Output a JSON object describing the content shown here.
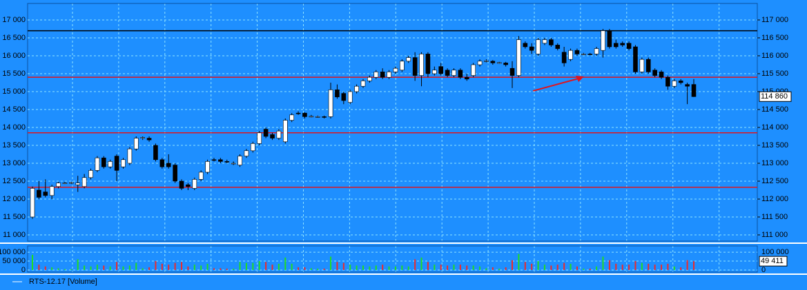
{
  "chart_data": [
    {
      "type": "candlestick",
      "ylim": [
        10827,
        17461
      ],
      "yticks": [
        {
          "value": 11000,
          "label": "11 000"
        },
        {
          "value": 11500,
          "label": "11 500"
        },
        {
          "value": 12000,
          "label": "12 000"
        },
        {
          "value": 12500,
          "label": "12 500"
        },
        {
          "value": 13000,
          "label": "13 000"
        },
        {
          "value": 13500,
          "label": "13 500"
        },
        {
          "value": 14000,
          "label": "14 000"
        },
        {
          "value": 14500,
          "label": "14 500"
        },
        {
          "value": 15000,
          "label": "15 000"
        },
        {
          "value": 15500,
          "label": "15 500"
        },
        {
          "value": 16000,
          "label": "16 000"
        },
        {
          "value": 16500,
          "label": "16 500"
        },
        {
          "value": 17000,
          "label": "17 000"
        }
      ],
      "y2lim": [
        110827,
        117461
      ],
      "y2ticks": [
        {
          "value": 111000,
          "label": "111 000"
        },
        {
          "value": 111500,
          "label": "111 500"
        },
        {
          "value": 112000,
          "label": "112 000"
        },
        {
          "value": 112500,
          "label": "112 500"
        },
        {
          "value": 113000,
          "label": "113 000"
        },
        {
          "value": 113500,
          "label": "113 500"
        },
        {
          "value": 114000,
          "label": "114 000"
        },
        {
          "value": 114500,
          "label": "114 500"
        },
        {
          "value": 115000,
          "label": "115 000"
        },
        {
          "value": 115500,
          "label": "115 500"
        },
        {
          "value": 116000,
          "label": "116 000"
        },
        {
          "value": 116500,
          "label": "116 500"
        },
        {
          "value": 117000,
          "label": "117 000"
        }
      ],
      "grid": true,
      "up_color": "#ffffff",
      "down_color": "#000000",
      "last_price": {
        "value": 114860,
        "label": "114 860"
      },
      "levels": [
        {
          "value": 16700,
          "color": "#000000"
        },
        {
          "value": 15400,
          "color": "#e0141e"
        },
        {
          "value": 13850,
          "color": "#e0141e"
        },
        {
          "value": 12330,
          "color": "#e0141e"
        }
      ],
      "ohlc": [
        [
          11500,
          12350,
          11450,
          12300
        ],
        [
          12250,
          12500,
          12000,
          12050
        ],
        [
          12200,
          12550,
          12050,
          12100
        ],
        [
          12100,
          12400,
          12000,
          12350
        ],
        [
          12350,
          12480,
          12300,
          12450
        ],
        [
          12450,
          12480,
          12420,
          12450
        ],
        [
          12450,
          12480,
          12420,
          12460
        ],
        [
          12400,
          12650,
          12200,
          12450
        ],
        [
          12350,
          12700,
          12300,
          12600
        ],
        [
          12600,
          12850,
          12550,
          12800
        ],
        [
          12800,
          13200,
          12750,
          13150
        ],
        [
          13150,
          13200,
          12850,
          12900
        ],
        [
          12900,
          13100,
          12850,
          13050
        ],
        [
          13200,
          13250,
          12500,
          12800
        ],
        [
          12900,
          13150,
          12850,
          13100
        ],
        [
          13000,
          13450,
          12950,
          13400
        ],
        [
          13400,
          13750,
          13350,
          13700
        ],
        [
          13700,
          13750,
          13650,
          13720
        ],
        [
          13700,
          13750,
          13600,
          13650
        ],
        [
          13500,
          13550,
          13050,
          13100
        ],
        [
          13100,
          13150,
          12850,
          12900
        ],
        [
          13000,
          13250,
          12850,
          12900
        ],
        [
          12950,
          13000,
          12450,
          12500
        ],
        [
          12500,
          12550,
          12250,
          12300
        ],
        [
          12400,
          12450,
          12250,
          12350
        ],
        [
          12300,
          12600,
          12250,
          12550
        ],
        [
          12550,
          12800,
          12500,
          12750
        ],
        [
          12750,
          13100,
          12700,
          13050
        ],
        [
          13100,
          13150,
          13050,
          13080
        ],
        [
          13100,
          13150,
          13000,
          13050
        ],
        [
          13050,
          13100,
          13000,
          13040
        ],
        [
          13000,
          13050,
          12950,
          13000
        ],
        [
          12950,
          13250,
          12900,
          13200
        ],
        [
          13200,
          13400,
          13150,
          13350
        ],
        [
          13350,
          13600,
          13300,
          13550
        ],
        [
          13550,
          13900,
          13500,
          13850
        ],
        [
          13950,
          14000,
          13700,
          13750
        ],
        [
          13800,
          13850,
          13650,
          13700
        ],
        [
          13700,
          13950,
          13650,
          13900
        ],
        [
          13600,
          14250,
          13550,
          14200
        ],
        [
          14200,
          14400,
          14150,
          14350
        ],
        [
          14400,
          14450,
          14350,
          14380
        ],
        [
          14400,
          14420,
          14250,
          14300
        ],
        [
          14300,
          14350,
          14280,
          14310
        ],
        [
          14300,
          14330,
          14270,
          14300
        ],
        [
          14300,
          14330,
          14250,
          14290
        ],
        [
          14300,
          15250,
          14250,
          15050
        ],
        [
          15050,
          15200,
          14800,
          14850
        ],
        [
          14950,
          15000,
          14650,
          14750
        ],
        [
          14700,
          15050,
          14650,
          15000
        ],
        [
          15000,
          15200,
          14950,
          15150
        ],
        [
          15150,
          15350,
          15100,
          15300
        ],
        [
          15300,
          15450,
          15250,
          15400
        ],
        [
          15400,
          15600,
          15350,
          15550
        ],
        [
          15550,
          15650,
          15350,
          15400
        ],
        [
          15400,
          15600,
          15350,
          15550
        ],
        [
          15550,
          15700,
          15500,
          15650
        ],
        [
          15600,
          15900,
          15550,
          15850
        ],
        [
          15850,
          16000,
          15800,
          15950
        ],
        [
          15950,
          16100,
          15300,
          15450
        ],
        [
          15450,
          16100,
          15150,
          16050
        ],
        [
          16050,
          16100,
          15400,
          15500
        ],
        [
          15500,
          15700,
          15450,
          15600
        ],
        [
          15700,
          15800,
          15450,
          15500
        ],
        [
          15600,
          15650,
          15400,
          15450
        ],
        [
          15450,
          15650,
          15400,
          15600
        ],
        [
          15600,
          15650,
          15350,
          15400
        ],
        [
          15400,
          15500,
          15300,
          15350
        ],
        [
          15450,
          15800,
          15400,
          15750
        ],
        [
          15750,
          15900,
          15700,
          15850
        ],
        [
          15850,
          15900,
          15820,
          15860
        ],
        [
          15850,
          15880,
          15750,
          15800
        ],
        [
          15800,
          15830,
          15780,
          15810
        ],
        [
          15800,
          15830,
          15700,
          15750
        ],
        [
          15650,
          15850,
          15100,
          15450
        ],
        [
          15450,
          16550,
          15400,
          16450
        ],
        [
          16350,
          16400,
          16200,
          16250
        ],
        [
          16250,
          16350,
          16050,
          16150
        ],
        [
          16050,
          16500,
          16000,
          16450
        ],
        [
          16350,
          16500,
          16300,
          16450
        ],
        [
          16450,
          16500,
          16250,
          16300
        ],
        [
          16300,
          16350,
          16150,
          16200
        ],
        [
          16100,
          16250,
          15700,
          15800
        ],
        [
          15900,
          16200,
          15850,
          16150
        ],
        [
          16150,
          16200,
          16000,
          16050
        ],
        [
          16050,
          16080,
          16020,
          16050
        ],
        [
          16050,
          16080,
          16020,
          16040
        ],
        [
          16050,
          16250,
          16000,
          16200
        ],
        [
          16150,
          16750,
          15950,
          16700
        ],
        [
          16700,
          16750,
          16200,
          16250
        ],
        [
          16350,
          16450,
          16200,
          16250
        ],
        [
          16350,
          16400,
          16250,
          16300
        ],
        [
          16350,
          16400,
          16150,
          16200
        ],
        [
          16250,
          16300,
          15500,
          15550
        ],
        [
          15550,
          15950,
          15500,
          15900
        ],
        [
          15900,
          15950,
          15500,
          15550
        ],
        [
          15600,
          15650,
          15400,
          15450
        ],
        [
          15550,
          15600,
          15350,
          15400
        ],
        [
          15400,
          15450,
          15050,
          15150
        ],
        [
          15150,
          15350,
          15100,
          15300
        ],
        [
          15300,
          15350,
          15200,
          15250
        ],
        [
          15200,
          15250,
          14650,
          15150
        ],
        [
          15200,
          15350,
          14850,
          14860
        ]
      ]
    },
    {
      "type": "volume",
      "legend": "RTS-12.17 [Volume]",
      "ylim": [
        0,
        135000
      ],
      "yticks": [
        {
          "value": 0,
          "label": "0"
        },
        {
          "value": 50000,
          "label": "50 000"
        },
        {
          "value": 100000,
          "label": "100 000"
        }
      ],
      "y2ticks": [
        {
          "value": 0,
          "label": "0"
        },
        {
          "value": 100000,
          "label": "100 000"
        }
      ],
      "up_color": "#22dd22",
      "down_color": "#ee2a2a",
      "last_volume": {
        "value": 49411,
        "label": "49 411"
      },
      "values": [
        85000,
        30000,
        20000,
        15000,
        10000,
        5000,
        5000,
        60000,
        25000,
        20000,
        30000,
        25000,
        20000,
        45000,
        20000,
        25000,
        40000,
        10000,
        15000,
        50000,
        35000,
        30000,
        40000,
        45000,
        20000,
        30000,
        25000,
        35000,
        10000,
        10000,
        8000,
        8000,
        45000,
        40000,
        40000,
        50000,
        45000,
        30000,
        35000,
        70000,
        35000,
        15000,
        15000,
        10000,
        8000,
        8000,
        75000,
        45000,
        40000,
        30000,
        25000,
        25000,
        20000,
        25000,
        30000,
        20000,
        20000,
        25000,
        20000,
        60000,
        70000,
        45000,
        30000,
        30000,
        25000,
        30000,
        30000,
        25000,
        25000,
        20000,
        10000,
        15000,
        8000,
        15000,
        55000,
        90000,
        45000,
        35000,
        50000,
        30000,
        25000,
        30000,
        40000,
        35000,
        20000,
        8000,
        8000,
        20000,
        75000,
        55000,
        35000,
        30000,
        30000,
        50000,
        40000,
        35000,
        30000,
        30000,
        35000,
        20000,
        15000,
        55000,
        49411
      ]
    }
  ]
}
